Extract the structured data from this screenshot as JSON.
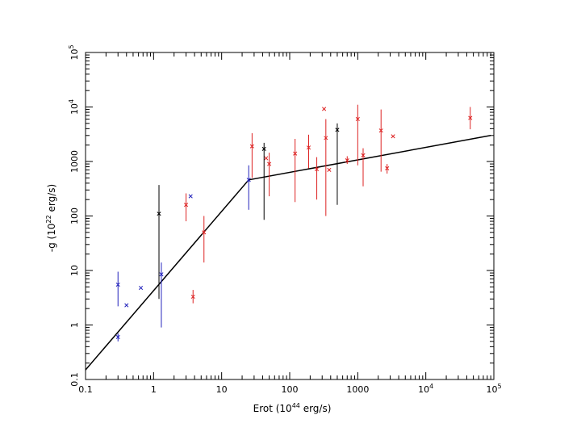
{
  "chart_data": {
    "type": "scatter",
    "title": "",
    "x_scale": "log",
    "y_scale": "log",
    "xlim": [
      0.1,
      100000
    ],
    "ylim": [
      0.1,
      100000
    ],
    "grid": false,
    "xlabel": {
      "base": "Erot (10",
      "exp": "44",
      "tail": " erg/s)"
    },
    "ylabel": {
      "base": "-g (10",
      "exp": "22",
      "tail": " erg/s)"
    },
    "x_ticks": [
      {
        "value": 0.1,
        "base": "0.1",
        "exp": ""
      },
      {
        "value": 1,
        "base": "1",
        "exp": ""
      },
      {
        "value": 10,
        "base": "10",
        "exp": ""
      },
      {
        "value": 100,
        "base": "100",
        "exp": ""
      },
      {
        "value": 1000,
        "base": "1000",
        "exp": ""
      },
      {
        "value": 10000,
        "base": "10",
        "exp": "4"
      },
      {
        "value": 100000,
        "base": "10",
        "exp": "5"
      }
    ],
    "y_ticks": [
      {
        "value": 0.1,
        "base": "0.1",
        "exp": ""
      },
      {
        "value": 1,
        "base": "1",
        "exp": ""
      },
      {
        "value": 10,
        "base": "10",
        "exp": ""
      },
      {
        "value": 100,
        "base": "100",
        "exp": ""
      },
      {
        "value": 1000,
        "base": "1000",
        "exp": ""
      },
      {
        "value": 10000,
        "base": "10",
        "exp": "4"
      },
      {
        "value": 100000,
        "base": "10",
        "exp": "5"
      }
    ],
    "series": [
      {
        "color": "#2222bb",
        "points": [
          {
            "x": 0.3,
            "y": 5.5,
            "ylo": 2.2,
            "yhi": 9.5
          },
          {
            "x": 0.3,
            "y": 0.6,
            "ylo": 0.5,
            "yhi": 0.7
          },
          {
            "x": 0.4,
            "y": 2.3
          },
          {
            "x": 0.65,
            "y": 4.8
          },
          {
            "x": 1.3,
            "y": 8.5,
            "ylo": 0.9,
            "yhi": 14
          },
          {
            "x": 25,
            "y": 460,
            "ylo": 130,
            "yhi": 850
          },
          {
            "x": 3.5,
            "y": 230
          }
        ]
      },
      {
        "color": "#dd2222",
        "points": [
          {
            "x": 3,
            "y": 160,
            "ylo": 80,
            "yhi": 260
          },
          {
            "x": 3.8,
            "y": 3.3,
            "ylo": 2.5,
            "yhi": 4.4
          },
          {
            "x": 5.5,
            "y": 50,
            "ylo": 14,
            "yhi": 100
          },
          {
            "x": 28,
            "y": 1900,
            "ylo": 500,
            "yhi": 3300
          },
          {
            "x": 45,
            "y": 1150
          },
          {
            "x": 50,
            "y": 900,
            "ylo": 230,
            "yhi": 1450
          },
          {
            "x": 120,
            "y": 1400,
            "ylo": 180,
            "yhi": 2600
          },
          {
            "x": 190,
            "y": 1800,
            "ylo": 750,
            "yhi": 3100
          },
          {
            "x": 250,
            "y": 720,
            "ylo": 200,
            "yhi": 1200
          },
          {
            "x": 320,
            "y": 9200
          },
          {
            "x": 340,
            "y": 2700,
            "ylo": 100,
            "yhi": 6000
          },
          {
            "x": 380,
            "y": 700
          },
          {
            "x": 700,
            "y": 1050,
            "ylo": 900,
            "yhi": 1250
          },
          {
            "x": 1000,
            "y": 6000,
            "ylo": 850,
            "yhi": 11000
          },
          {
            "x": 1200,
            "y": 1300,
            "ylo": 350,
            "yhi": 1750
          },
          {
            "x": 2200,
            "y": 3700,
            "ylo": 650,
            "yhi": 9000
          },
          {
            "x": 2700,
            "y": 750,
            "ylo": 600,
            "yhi": 900
          },
          {
            "x": 3300,
            "y": 2900
          },
          {
            "x": 45000,
            "y": 6300,
            "ylo": 3900,
            "yhi": 10000
          }
        ]
      },
      {
        "color": "#000000",
        "points": [
          {
            "x": 1.2,
            "y": 110,
            "ylo": 3,
            "yhi": 370
          },
          {
            "x": 42,
            "y": 1700,
            "ylo": 85,
            "yhi": 2200
          },
          {
            "x": 500,
            "y": 3800,
            "ylo": 160,
            "yhi": 5000
          }
        ]
      }
    ],
    "fit_line": {
      "color": "#000000",
      "points": [
        {
          "x": 0.1,
          "y": 0.15
        },
        {
          "x": 25,
          "y": 460
        },
        {
          "x": 90000,
          "y": 3000
        }
      ]
    }
  }
}
